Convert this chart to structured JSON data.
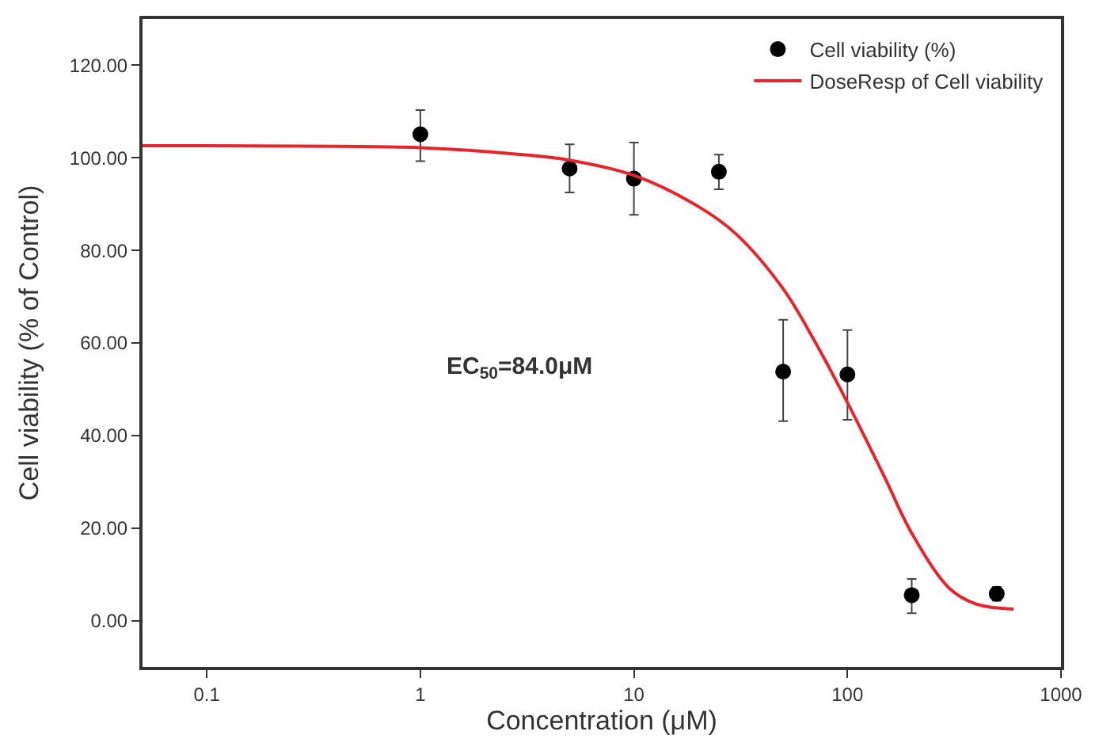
{
  "chart_data": {
    "type": "scatter",
    "xlabel": "Concentration (μM)",
    "ylabel": "Cell viability (% of Control)",
    "log": "x",
    "xlim": [
      0.05,
      1000
    ],
    "xticks": [
      0.1,
      1,
      10,
      100,
      1000
    ],
    "ylim": [
      -10,
      130
    ],
    "yticks": [
      {
        "value": 0,
        "label": "0.00"
      },
      {
        "value": 20,
        "label": "20.00"
      },
      {
        "value": 40,
        "label": "40.00"
      },
      {
        "value": 60,
        "label": "60.00"
      },
      {
        "value": 80,
        "label": "80.00"
      },
      {
        "value": 100,
        "label": "100.00"
      },
      {
        "value": 120,
        "label": "120.00"
      }
    ],
    "legend": "top right",
    "annotations": [
      "EC$_{50}$=84.0μM"
    ],
    "series": [
      {
        "name": "Cell viability (%)",
        "marker": "circle",
        "color": "#000000",
        "x": [
          1,
          5,
          10,
          25,
          50,
          100,
          200,
          500
        ],
        "values": [
          105.1,
          97.7,
          95.5,
          97,
          53.8,
          53.2,
          5.5,
          5.8
        ],
        "errors": [
          [
            99.3,
            110.3
          ],
          [
            92.5,
            102.9
          ],
          [
            87.7,
            103.3
          ],
          [
            93.2,
            100.7
          ],
          [
            43.1,
            65
          ],
          [
            43.4,
            62.8
          ],
          [
            1.6,
            9
          ],
          [
            4.3,
            7.3
          ]
        ]
      },
      {
        "name": "DoseResp of Cell viability",
        "type": "line",
        "marker": "none",
        "color": "#e8242c",
        "x": [
          0.05,
          0.1,
          1,
          3,
          5,
          10,
          20,
          30,
          50,
          70,
          100,
          150,
          200,
          300,
          400,
          600
        ],
        "values": [
          102.6,
          102.6,
          102.2,
          100.7,
          99.5,
          96.2,
          89.5,
          83.6,
          71.7,
          60.5,
          47.1,
          30.8,
          18.9,
          7.0,
          3.6,
          2.5
        ]
      }
    ]
  }
}
